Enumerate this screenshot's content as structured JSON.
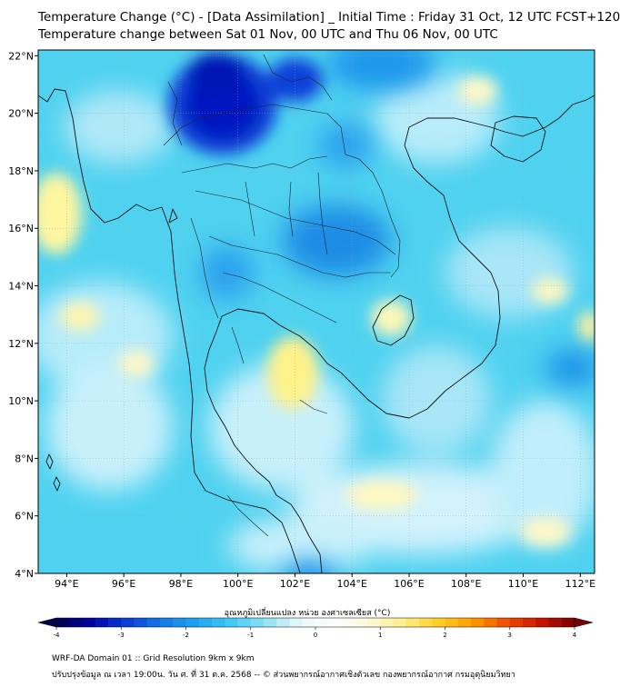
{
  "title": {
    "line1": "Temperature Change (°C) - [Data Assimilation] _ Initial Time : Friday 31 Oct, 12 UTC FCST+120",
    "line2": "Temperature change between Sat 01 Nov, 00 UTC and Thu 06 Nov, 00 UTC"
  },
  "map": {
    "lon_labels": [
      "94°E",
      "96°E",
      "98°E",
      "100°E",
      "102°E",
      "104°E",
      "106°E",
      "108°E",
      "110°E",
      "112°E"
    ],
    "lat_labels": [
      "22°N",
      "20°N",
      "18°N",
      "16°N",
      "14°N",
      "12°N",
      "10°N",
      "8°N",
      "6°N",
      "4°N"
    ],
    "lon_values": [
      94,
      96,
      98,
      100,
      102,
      104,
      106,
      108,
      110,
      112
    ],
    "lat_values": [
      22,
      20,
      18,
      16,
      14,
      12,
      10,
      8,
      6,
      4
    ],
    "extent": {
      "lon": [
        93,
        112.5
      ],
      "lat": [
        4,
        22.2
      ]
    },
    "gridlines": true,
    "base_color": "#4fd2f0",
    "features": [
      {
        "name": "strong-cooling-north",
        "color": "#0019d6"
      },
      {
        "name": "cooling-central",
        "color": "#1a8ce6"
      },
      {
        "name": "warming-patch",
        "color": "#fff28a"
      },
      {
        "name": "neutral-patch",
        "color": "#dff6ff"
      }
    ]
  },
  "colorbar": {
    "label": "อุณหภูมิเปลี่ยนแปลง หน่วย องศาเซลเซียส (°C)",
    "range": [
      -4,
      4
    ],
    "ticks": [
      "-4",
      "-3",
      "-2",
      "-1",
      "0",
      "1",
      "2",
      "3",
      "4"
    ],
    "tick_values": [
      -4,
      -3,
      -2,
      -1,
      0,
      1,
      2,
      3,
      4
    ],
    "colors": [
      "#00004a",
      "#0000a0",
      "#0a3cd6",
      "#1478e6",
      "#1ea0f0",
      "#3cc8f5",
      "#8ce0f5",
      "#e6f8fa",
      "#ffffff",
      "#fffadc",
      "#fff08c",
      "#ffd228",
      "#ffa000",
      "#f05000",
      "#c81400",
      "#780000"
    ]
  },
  "footer": {
    "line1": "WRF-DA Domain 01 :: Grid Resolution 9km x 9km",
    "line2": "ปรับปรุงข้อมูล ณ เวลา 19:00น. วัน ศ. ที่ 31 ต.ค. 2568 -- © ส่วนพยากรณ์อากาศเชิงตัวเลข กองพยากรณ์อากาศ กรมอุตุนิยมวิทยา"
  }
}
